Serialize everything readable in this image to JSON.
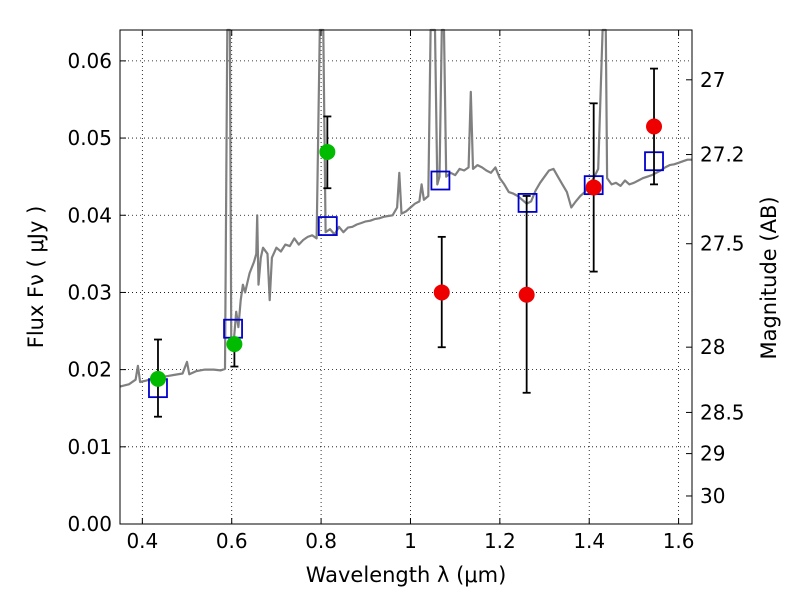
{
  "chart_data": {
    "type": "scatter",
    "xlabel": "Wavelength  λ (μm)",
    "ylabel": "Flux  Fν  ( μJy )",
    "ylabel_right": "Magnitude (AB)",
    "xlim": [
      0.35,
      1.63
    ],
    "ylim": [
      0.0,
      0.064
    ],
    "grid": true,
    "x_ticks": [
      0.4,
      0.6,
      0.8,
      1.0,
      1.2,
      1.4,
      1.6
    ],
    "x_tick_labels": [
      "0.4",
      "0.6",
      "0.8",
      "1",
      "1.2",
      "1.4",
      "1.6"
    ],
    "y_ticks": [
      0.0,
      0.01,
      0.02,
      0.03,
      0.04,
      0.05,
      0.06
    ],
    "y_tick_labels": [
      "0.00",
      "0.01",
      "0.02",
      "0.03",
      "0.04",
      "0.05",
      "0.06"
    ],
    "right_ticks": [
      {
        "mag": 27.0,
        "label": "27"
      },
      {
        "mag": 27.2,
        "label": "27.2"
      },
      {
        "mag": 27.5,
        "label": "27.5"
      },
      {
        "mag": 28.0,
        "label": "28"
      },
      {
        "mag": 28.5,
        "label": "28.5"
      },
      {
        "mag": 29.0,
        "label": "29"
      },
      {
        "mag": 30.0,
        "label": "30"
      }
    ],
    "colors": {
      "spectrum": "#808080",
      "model_boxes": "#0000cc",
      "green_points": "#00bb00",
      "red_points": "#ee0000",
      "errorbars": "#000000"
    },
    "series": [
      {
        "points": [
          {
            "x": 0.435,
            "y": 0.0188,
            "ylow": 0.0139,
            "yhigh": 0.0239
          },
          {
            "x": 0.606,
            "y": 0.0233,
            "ylow": 0.0204,
            "yhigh": 0.0238
          },
          {
            "x": 0.814,
            "y": 0.0482,
            "ylow": 0.0435,
            "yhigh": 0.0528
          }
        ]
      },
      {
        "points": [
          {
            "x": 1.07,
            "y": 0.03,
            "ylow": 0.0229,
            "yhigh": 0.0372
          },
          {
            "x": 1.26,
            "y": 0.0297,
            "ylow": 0.017,
            "yhigh": 0.0425
          },
          {
            "x": 1.41,
            "y": 0.0436,
            "ylow": 0.0327,
            "yhigh": 0.0545
          },
          {
            "x": 1.545,
            "y": 0.0515,
            "ylow": 0.044,
            "yhigh": 0.059
          }
        ]
      },
      {
        "points": [
          {
            "x": 0.435,
            "y": 0.0176
          },
          {
            "x": 0.603,
            "y": 0.0253
          },
          {
            "x": 0.815,
            "y": 0.0386
          },
          {
            "x": 1.067,
            "y": 0.0445
          },
          {
            "x": 1.262,
            "y": 0.0416
          },
          {
            "x": 1.41,
            "y": 0.0439
          },
          {
            "x": 1.545,
            "y": 0.047
          }
        ]
      },
      {
        "points": [
          [
            0.35,
            0.0178
          ],
          [
            0.37,
            0.0181
          ],
          [
            0.385,
            0.0187
          ],
          [
            0.39,
            0.0205
          ],
          [
            0.395,
            0.0184
          ],
          [
            0.41,
            0.0186
          ],
          [
            0.43,
            0.0189
          ],
          [
            0.45,
            0.0191
          ],
          [
            0.47,
            0.0193
          ],
          [
            0.49,
            0.0195
          ],
          [
            0.5,
            0.021
          ],
          [
            0.505,
            0.0194
          ],
          [
            0.52,
            0.0198
          ],
          [
            0.54,
            0.02
          ],
          [
            0.56,
            0.02
          ],
          [
            0.575,
            0.0199
          ],
          [
            0.585,
            0.0201
          ],
          [
            0.59,
            0.064
          ],
          [
            0.596,
            0.064
          ],
          [
            0.599,
            0.0225
          ],
          [
            0.605,
            0.024
          ],
          [
            0.61,
            0.0275
          ],
          [
            0.615,
            0.0255
          ],
          [
            0.62,
            0.029
          ],
          [
            0.625,
            0.031
          ],
          [
            0.63,
            0.03
          ],
          [
            0.64,
            0.0325
          ],
          [
            0.65,
            0.034
          ],
          [
            0.655,
            0.035
          ],
          [
            0.657,
            0.04
          ],
          [
            0.66,
            0.031
          ],
          [
            0.665,
            0.0345
          ],
          [
            0.67,
            0.0358
          ],
          [
            0.68,
            0.035
          ],
          [
            0.685,
            0.029
          ],
          [
            0.69,
            0.0345
          ],
          [
            0.7,
            0.0358
          ],
          [
            0.71,
            0.0353
          ],
          [
            0.72,
            0.0362
          ],
          [
            0.73,
            0.036
          ],
          [
            0.74,
            0.037
          ],
          [
            0.75,
            0.0362
          ],
          [
            0.76,
            0.0368
          ],
          [
            0.77,
            0.0372
          ],
          [
            0.78,
            0.0374
          ],
          [
            0.79,
            0.037
          ],
          [
            0.797,
            0.064
          ],
          [
            0.805,
            0.064
          ],
          [
            0.81,
            0.0378
          ],
          [
            0.82,
            0.0382
          ],
          [
            0.83,
            0.0375
          ],
          [
            0.84,
            0.0385
          ],
          [
            0.85,
            0.0378
          ],
          [
            0.86,
            0.0384
          ],
          [
            0.87,
            0.0385
          ],
          [
            0.88,
            0.0388
          ],
          [
            0.89,
            0.039
          ],
          [
            0.9,
            0.0392
          ],
          [
            0.91,
            0.0393
          ],
          [
            0.92,
            0.0395
          ],
          [
            0.93,
            0.0396
          ],
          [
            0.94,
            0.0398
          ],
          [
            0.95,
            0.0399
          ],
          [
            0.96,
            0.04
          ],
          [
            0.97,
            0.041
          ],
          [
            0.975,
            0.0455
          ],
          [
            0.98,
            0.0402
          ],
          [
            0.99,
            0.0405
          ],
          [
            1.0,
            0.041
          ],
          [
            1.01,
            0.0415
          ],
          [
            1.02,
            0.0418
          ],
          [
            1.025,
            0.044
          ],
          [
            1.03,
            0.042
          ],
          [
            1.04,
            0.0425
          ],
          [
            1.045,
            0.064
          ],
          [
            1.055,
            0.064
          ],
          [
            1.06,
            0.044
          ],
          [
            1.065,
            0.045
          ],
          [
            1.07,
            0.064
          ],
          [
            1.075,
            0.064
          ],
          [
            1.08,
            0.045
          ],
          [
            1.09,
            0.0455
          ],
          [
            1.1,
            0.0452
          ],
          [
            1.11,
            0.046
          ],
          [
            1.12,
            0.0458
          ],
          [
            1.13,
            0.0462
          ],
          [
            1.135,
            0.056
          ],
          [
            1.14,
            0.046
          ],
          [
            1.15,
            0.0465
          ],
          [
            1.16,
            0.0462
          ],
          [
            1.17,
            0.0458
          ],
          [
            1.18,
            0.0455
          ],
          [
            1.19,
            0.0462
          ],
          [
            1.2,
            0.0448
          ],
          [
            1.21,
            0.044
          ],
          [
            1.22,
            0.043
          ],
          [
            1.23,
            0.0428
          ],
          [
            1.24,
            0.0425
          ],
          [
            1.25,
            0.042
          ],
          [
            1.26,
            0.0415
          ],
          [
            1.27,
            0.0418
          ],
          [
            1.28,
            0.0432
          ],
          [
            1.29,
            0.0442
          ],
          [
            1.3,
            0.045
          ],
          [
            1.31,
            0.0458
          ],
          [
            1.32,
            0.046
          ],
          [
            1.33,
            0.045
          ],
          [
            1.34,
            0.044
          ],
          [
            1.35,
            0.043
          ],
          [
            1.36,
            0.041
          ],
          [
            1.37,
            0.0418
          ],
          [
            1.38,
            0.0425
          ],
          [
            1.39,
            0.043
          ],
          [
            1.4,
            0.044
          ],
          [
            1.41,
            0.0448
          ],
          [
            1.42,
            0.046
          ],
          [
            1.43,
            0.064
          ],
          [
            1.437,
            0.064
          ],
          [
            1.44,
            0.0448
          ],
          [
            1.45,
            0.044
          ],
          [
            1.46,
            0.0442
          ],
          [
            1.47,
            0.0438
          ],
          [
            1.48,
            0.0445
          ],
          [
            1.49,
            0.044
          ],
          [
            1.5,
            0.0442
          ],
          [
            1.51,
            0.0445
          ],
          [
            1.52,
            0.0448
          ],
          [
            1.53,
            0.045
          ],
          [
            1.54,
            0.0452
          ],
          [
            1.55,
            0.0455
          ],
          [
            1.56,
            0.0458
          ],
          [
            1.57,
            0.0462
          ],
          [
            1.58,
            0.0465
          ],
          [
            1.59,
            0.0466
          ],
          [
            1.6,
            0.0468
          ],
          [
            1.61,
            0.047
          ],
          [
            1.62,
            0.0472
          ],
          [
            1.63,
            0.0472
          ]
        ]
      }
    ]
  }
}
